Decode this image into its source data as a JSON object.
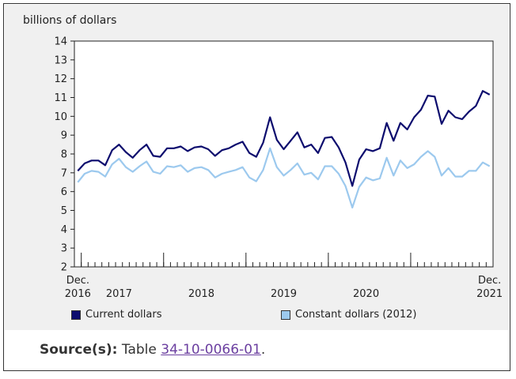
{
  "chart_data": {
    "type": "line",
    "ylabel": "billions of dollars",
    "ylim": [
      2,
      14
    ],
    "yticks": [
      2,
      3,
      4,
      5,
      6,
      7,
      8,
      9,
      10,
      11,
      12,
      13,
      14
    ],
    "x_start": "Dec. 2016",
    "x_end": "Dec. 2021",
    "x_labels": [
      {
        "index": 0,
        "line1": "Dec.",
        "line2": "2016"
      },
      {
        "index": 6,
        "line1": "",
        "line2": "2017"
      },
      {
        "index": 18,
        "line1": "",
        "line2": "2018"
      },
      {
        "index": 30,
        "line1": "",
        "line2": "2019"
      },
      {
        "index": 42,
        "line1": "",
        "line2": "2020"
      },
      {
        "index": 60,
        "line1": "Dec.",
        "line2": "2021"
      }
    ],
    "year_boundaries": [
      1,
      13,
      25,
      37,
      49
    ],
    "series": [
      {
        "name": "Current dollars",
        "color": "#0c0c6e",
        "values": [
          7.1,
          7.5,
          7.65,
          7.65,
          7.4,
          8.2,
          8.5,
          8.1,
          7.8,
          8.2,
          8.5,
          7.9,
          7.85,
          8.3,
          8.3,
          8.4,
          8.15,
          8.35,
          8.4,
          8.25,
          7.9,
          8.2,
          8.3,
          8.5,
          8.65,
          8.05,
          7.85,
          8.6,
          9.95,
          8.75,
          8.25,
          8.7,
          9.15,
          8.35,
          8.5,
          8.05,
          8.85,
          8.9,
          8.35,
          7.55,
          6.3,
          7.7,
          8.25,
          8.15,
          8.3,
          9.65,
          8.7,
          9.65,
          9.3,
          9.95,
          10.35,
          11.1,
          11.05,
          9.6,
          10.3,
          9.95,
          9.85,
          10.25,
          10.55,
          11.35,
          11.15
        ]
      },
      {
        "name": "Constant dollars (2012)",
        "color": "#9cc9ee",
        "values": [
          6.5,
          6.95,
          7.1,
          7.05,
          6.8,
          7.45,
          7.75,
          7.3,
          7.05,
          7.35,
          7.6,
          7.05,
          6.95,
          7.35,
          7.3,
          7.4,
          7.05,
          7.25,
          7.3,
          7.15,
          6.75,
          6.95,
          7.05,
          7.15,
          7.3,
          6.75,
          6.55,
          7.15,
          8.3,
          7.3,
          6.85,
          7.15,
          7.5,
          6.9,
          7.0,
          6.65,
          7.35,
          7.35,
          6.95,
          6.3,
          5.15,
          6.25,
          6.75,
          6.6,
          6.7,
          7.8,
          6.85,
          7.65,
          7.25,
          7.45,
          7.85,
          8.15,
          7.85,
          6.85,
          7.25,
          6.8,
          6.8,
          7.1,
          7.1,
          7.55,
          7.35
        ]
      }
    ]
  },
  "legend": {
    "current_label": "Current dollars",
    "constant_label": "Constant dollars (2012)"
  },
  "source": {
    "label": "Source(s):",
    "text_before": " Table ",
    "link_text": "34-10-0066-01",
    "text_after": "."
  }
}
